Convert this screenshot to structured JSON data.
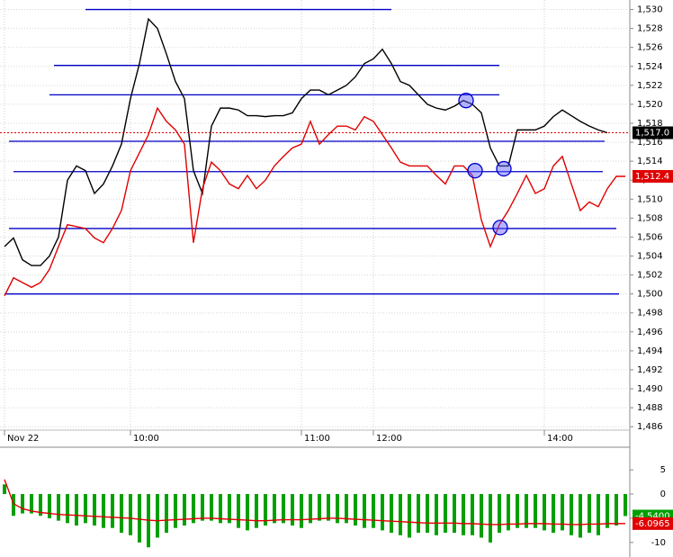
{
  "chart_data": [
    {
      "type": "line",
      "categories": [
        "Nov 22",
        null,
        null,
        null,
        null,
        null,
        null,
        null,
        null,
        null,
        null,
        null,
        null,
        null,
        "10:00",
        null,
        null,
        null,
        null,
        null,
        null,
        null,
        null,
        null,
        null,
        null,
        null,
        null,
        null,
        null,
        null,
        null,
        null,
        "11:00",
        null,
        null,
        null,
        null,
        null,
        null,
        null,
        "12:00",
        null,
        null,
        null,
        null,
        null,
        null,
        null,
        null,
        null,
        null,
        null,
        null,
        null,
        null,
        null,
        null,
        null,
        null,
        "14:00",
        null,
        null,
        null,
        null,
        null,
        null,
        null,
        null,
        null
      ],
      "series": [
        {
          "color": "#000000",
          "last_label": "1,517.0",
          "values": [
            1505,
            1505.9,
            1503.6,
            1503,
            1503,
            1504,
            1506,
            1512,
            1513.5,
            1513,
            1510.6,
            1511.6,
            1513.5,
            1515.8,
            1520.6,
            1524.3,
            1529,
            1528,
            1525.3,
            1522.4,
            1520.6,
            1513,
            1510.6,
            1517.7,
            1519.6,
            1519.6,
            1519.4,
            1518.8,
            1518.8,
            1518.7,
            1518.8,
            1518.8,
            1519.1,
            1520.6,
            1521.5,
            1521.5,
            1521,
            1521.5,
            1522,
            1522.9,
            1524.3,
            1524.8,
            1525.8,
            1524.3,
            1522.4,
            1522,
            1521,
            1520,
            1519.6,
            1519.4,
            1519.8,
            1520.4,
            1520,
            1519.1,
            1515.4,
            1513.5,
            1513.5,
            1517.3,
            1517.3,
            1517.3,
            1517.7,
            1518.7,
            1519.4,
            1518.8,
            1518.2,
            1517.7,
            1517.3,
            1517,
            null,
            null
          ]
        },
        {
          "color": "#e00000",
          "last_label": "1,512.4",
          "values": [
            1499.8,
            1501.7,
            1501.2,
            1500.7,
            1501.2,
            1502.6,
            1505,
            1507.3,
            1507.1,
            1506.9,
            1505.9,
            1505.4,
            1506.9,
            1508.8,
            1513,
            1514.9,
            1516.8,
            1519.6,
            1518.2,
            1517.3,
            1515.8,
            1505.4,
            1511.1,
            1513.9,
            1513,
            1511.6,
            1511.1,
            1512.5,
            1511.1,
            1512,
            1513.5,
            1514.5,
            1515.4,
            1515.8,
            1518.2,
            1515.8,
            1516.8,
            1517.7,
            1517.7,
            1517.3,
            1518.7,
            1518.2,
            1516.8,
            1515.4,
            1513.9,
            1513.5,
            1513.5,
            1513.5,
            1512.5,
            1511.6,
            1513.5,
            1513.5,
            1512.5,
            1507.8,
            1505,
            1507.3,
            1508.8,
            1510.6,
            1512.5,
            1510.6,
            1511.1,
            1513.5,
            1514.5,
            1511.6,
            1508.8,
            1509.7,
            1509.2,
            1511.1,
            1512.4,
            1512.4
          ]
        }
      ],
      "ylim": [
        1484.5,
        1531
      ],
      "yticks": [
        {
          "value": 1530,
          "label": "1,530"
        },
        {
          "value": 1528,
          "label": "1,528"
        },
        {
          "value": 1526,
          "label": "1,526"
        },
        {
          "value": 1524,
          "label": "1,524"
        },
        {
          "value": 1522,
          "label": "1,522"
        },
        {
          "value": 1520,
          "label": "1,520"
        },
        {
          "value": 1518,
          "label": "1,518"
        },
        {
          "value": 1516,
          "label": "1,516"
        },
        {
          "value": 1514,
          "label": "1,514"
        },
        {
          "value": 1512,
          "label": "1,512"
        },
        {
          "value": 1510,
          "label": "1,510"
        },
        {
          "value": 1508,
          "label": "1,508"
        },
        {
          "value": 1506,
          "label": "1,506"
        },
        {
          "value": 1504,
          "label": "1,504"
        },
        {
          "value": 1502,
          "label": "1,502"
        },
        {
          "value": 1500,
          "label": "1,500"
        },
        {
          "value": 1498,
          "label": "1,498"
        },
        {
          "value": 1496,
          "label": "1,496"
        },
        {
          "value": 1494,
          "label": "1,494"
        },
        {
          "value": 1492,
          "label": "1,492"
        },
        {
          "value": 1490,
          "label": "1,490"
        },
        {
          "value": 1488,
          "label": "1,488"
        },
        {
          "value": 1486,
          "label": "1,486"
        }
      ],
      "grid": true,
      "last_price_line": true,
      "levels": [
        {
          "value": 1530,
          "from": 9,
          "to": 43
        },
        {
          "value": 1524.1,
          "from": 5.5,
          "to": 55
        },
        {
          "value": 1521,
          "from": 5,
          "to": 55
        },
        {
          "value": 1516.1,
          "from": 0.5,
          "to": 66.7
        },
        {
          "value": 1512.9,
          "from": 1,
          "to": 66.5
        },
        {
          "value": 1506.9,
          "from": 0.5,
          "to": 68
        },
        {
          "value": 1500,
          "from": 0,
          "to": 68.3
        }
      ],
      "level_color": "#0000c8",
      "markers": [
        {
          "index": 51.3,
          "value": 1520.4
        },
        {
          "index": 52.3,
          "value": 1513
        },
        {
          "index": 55.5,
          "value": 1513.2
        },
        {
          "index": 55.1,
          "value": 1507
        }
      ]
    },
    {
      "type": "bar",
      "series": [
        {
          "type": "bar",
          "color": "#00a000",
          "last_label": "-4.5400",
          "values": [
            2,
            -4.5,
            -4,
            -4,
            -4.5,
            -5,
            -5.5,
            -6,
            -6.5,
            -6,
            -6.5,
            -7,
            -7,
            -8,
            -8.5,
            -10,
            -11,
            -9,
            -8,
            -7,
            -6.5,
            -6,
            -5.5,
            -5.5,
            -6,
            -6,
            -7,
            -7.5,
            -7,
            -6.5,
            -6,
            -6,
            -6.5,
            -7,
            -6,
            -5.5,
            -5.5,
            -6,
            -6,
            -6.5,
            -7,
            -7,
            -7.5,
            -8,
            -8.5,
            -9,
            -8,
            -8,
            -8.5,
            -8,
            -8,
            -8.5,
            -8.5,
            -9,
            -10,
            -8,
            -7.5,
            -7,
            -7,
            -7,
            -7.5,
            -8,
            -7.5,
            -8.5,
            -9,
            -8,
            -8.5,
            -7,
            -6.5,
            -4.54
          ]
        },
        {
          "type": "line",
          "color": "#e00000",
          "last_label": "-6.0965",
          "values": [
            3,
            -2,
            -3,
            -3.5,
            -3.8,
            -4,
            -4.2,
            -4.3,
            -4.4,
            -4.5,
            -4.6,
            -4.7,
            -4.8,
            -4.9,
            -5,
            -5.2,
            -5.4,
            -5.5,
            -5.4,
            -5.3,
            -5.2,
            -5.1,
            -5,
            -5,
            -5.1,
            -5.2,
            -5.3,
            -5.4,
            -5.5,
            -5.5,
            -5.4,
            -5.3,
            -5.3,
            -5.3,
            -5.2,
            -5.1,
            -5,
            -5,
            -5.1,
            -5.2,
            -5.3,
            -5.4,
            -5.5,
            -5.6,
            -5.7,
            -5.8,
            -5.9,
            -6,
            -6,
            -6,
            -6,
            -6.1,
            -6.1,
            -6.2,
            -6.3,
            -6.3,
            -6.2,
            -6.2,
            -6.1,
            -6.1,
            -6.1,
            -6.2,
            -6.2,
            -6.3,
            -6.3,
            -6.2,
            -6.2,
            -6.1,
            -6.1,
            -6.0965
          ]
        }
      ],
      "ylim": [
        -13,
        8
      ],
      "yticks": [
        5,
        0,
        -5,
        -10
      ]
    }
  ]
}
